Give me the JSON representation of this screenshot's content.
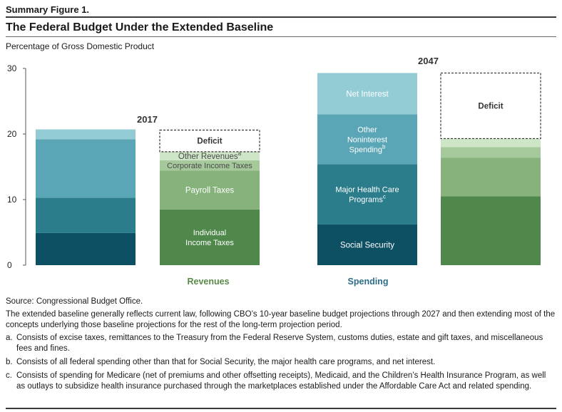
{
  "figure_label": "Summary Figure 1.",
  "title": "The Federal Budget Under the Extended Baseline",
  "subtitle": "Percentage of Gross Domestic Product",
  "chart_data": {
    "type": "bar",
    "stacked": true,
    "ylim": [
      0,
      30
    ],
    "yticks": [
      0,
      10,
      20,
      30
    ],
    "grid": false,
    "groups": [
      {
        "label": "Revenues",
        "label_color": "#5a8a4a"
      },
      {
        "label": "Spending",
        "label_color": "#2c6f86"
      }
    ],
    "year_labels": [
      "2017",
      "2047"
    ],
    "bars": [
      {
        "id": "spending-2017",
        "segments": [
          {
            "name": "Social Security",
            "value": 4.9,
            "color": "#0d4f63",
            "label": ""
          },
          {
            "name": "Major Health Care Programs",
            "value": 5.4,
            "color": "#2c7d8c",
            "label": ""
          },
          {
            "name": "Other Noninterest Spending",
            "value": 8.9,
            "color": "#5aa6b6",
            "label": ""
          },
          {
            "name": "Net Interest",
            "value": 1.5,
            "color": "#94ccd6",
            "label": ""
          }
        ]
      },
      {
        "id": "revenues-2017",
        "segments": [
          {
            "name": "Individual Income Taxes",
            "value": 8.5,
            "color": "#4f884a",
            "label": "Individual\nIncome Taxes"
          },
          {
            "name": "Payroll Taxes",
            "value": 5.9,
            "color": "#86b27c",
            "label": "Payroll Taxes"
          },
          {
            "name": "Corporate Income Taxes",
            "value": 1.6,
            "color": "#a5c99b",
            "label": "Corporate Income Taxes"
          },
          {
            "name": "Other Revenues",
            "value": 1.3,
            "color": "#cfe5c8",
            "label": "Other Revenues",
            "sup": "a"
          }
        ],
        "deficit": {
          "value": 3.3,
          "label": "Deficit"
        }
      },
      {
        "id": "spending-2047",
        "segments": [
          {
            "name": "Social Security",
            "value": 6.2,
            "color": "#0d4f63",
            "label": "Social Security"
          },
          {
            "name": "Major Health Care Programs",
            "value": 9.2,
            "color": "#2c7d8c",
            "label": "Major Health Care\nPrograms",
            "sup": "c"
          },
          {
            "name": "Other Noninterest Spending",
            "value": 7.6,
            "color": "#5aa6b6",
            "label": "Other\nNoninterest\nSpending",
            "sup": "b"
          },
          {
            "name": "Net Interest",
            "value": 6.3,
            "color": "#94ccd6",
            "label": "Net Interest"
          }
        ]
      },
      {
        "id": "revenues-2047",
        "segments": [
          {
            "name": "Individual Income Taxes",
            "value": 10.5,
            "color": "#4f884a",
            "label": ""
          },
          {
            "name": "Payroll Taxes",
            "value": 5.9,
            "color": "#86b27c",
            "label": ""
          },
          {
            "name": "Corporate Income Taxes",
            "value": 1.6,
            "color": "#a5c99b",
            "label": ""
          },
          {
            "name": "Other Revenues",
            "value": 1.3,
            "color": "#cfe5c8",
            "label": ""
          }
        ],
        "deficit": {
          "value": 10.0,
          "label": "Deficit"
        }
      }
    ]
  },
  "notes": {
    "source": "Source: Congressional Budget Office.",
    "general": "The extended baseline generally reflects current law, following CBO’s 10-year baseline budget projections through 2027 and then extending most of the concepts underlying those baseline projections for the rest of the long-term projection period.",
    "items": [
      {
        "marker": "a.",
        "text": "Consists of excise taxes, remittances to the Treasury from the Federal Reserve System, customs duties, estate and gift taxes, and miscellaneous fees and fines."
      },
      {
        "marker": "b.",
        "text": "Consists of all federal spending other than that for Social Security, the major health care programs, and net interest."
      },
      {
        "marker": "c.",
        "text": "Consists of spending for Medicare (net of premiums and other offsetting receipts), Medicaid, and the Children’s Health Insurance Program, as well as outlays to subsidize health insurance purchased through the marketplaces established under the Affordable Care Act and related spending."
      }
    ]
  }
}
